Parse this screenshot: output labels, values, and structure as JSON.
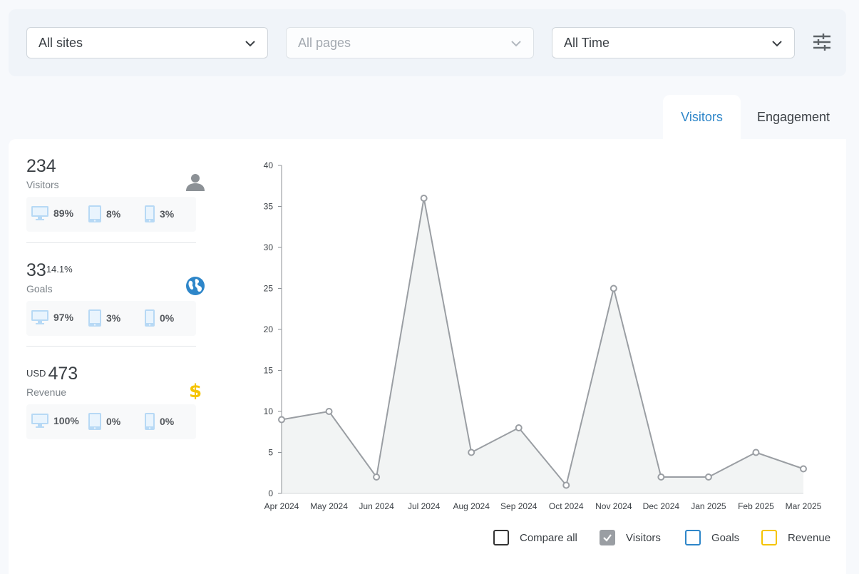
{
  "filters": {
    "site": "All sites",
    "page": "All pages",
    "time": "All Time"
  },
  "tabs": [
    {
      "label": "Visitors",
      "active": true
    },
    {
      "label": "Engagement",
      "active": false
    }
  ],
  "metrics": [
    {
      "value": "234",
      "sup": "",
      "prefix": "",
      "label": "Visitors",
      "icon": "user-icon",
      "devices": {
        "desktop": "89%",
        "tablet": "8%",
        "mobile": "3%"
      }
    },
    {
      "value": "33",
      "sup": "14.1%",
      "prefix": "",
      "label": "Goals",
      "icon": "globe-icon",
      "devices": {
        "desktop": "97%",
        "tablet": "3%",
        "mobile": "0%"
      }
    },
    {
      "value": "473",
      "sup": "",
      "prefix": "USD",
      "label": "Revenue",
      "icon": "dollar-icon",
      "devices": {
        "desktop": "100%",
        "tablet": "0%",
        "mobile": "0%"
      }
    }
  ],
  "legend": {
    "compare_all": "Compare all",
    "visitors": "Visitors",
    "goals": "Goals",
    "revenue": "Revenue"
  },
  "colors": {
    "accent": "#2e86c9",
    "series": "#9a9ea3",
    "revenue": "#f5c400",
    "goals": "#2e86c9"
  },
  "chart_data": {
    "type": "area",
    "categories": [
      "Apr 2024",
      "May 2024",
      "Jun 2024",
      "Jul 2024",
      "Aug 2024",
      "Sep 2024",
      "Oct 2024",
      "Nov 2024",
      "Dec 2024",
      "Jan 2025",
      "Feb 2025",
      "Mar 2025"
    ],
    "series": [
      {
        "name": "Visitors",
        "values": [
          9,
          10,
          2,
          36,
          5,
          8,
          1,
          25,
          2,
          2,
          5,
          3
        ]
      }
    ],
    "yticks": [
      0,
      5,
      10,
      15,
      20,
      25,
      30,
      35,
      40
    ],
    "ylim": [
      0,
      40
    ],
    "grid": false,
    "legend": "bottom-right"
  }
}
